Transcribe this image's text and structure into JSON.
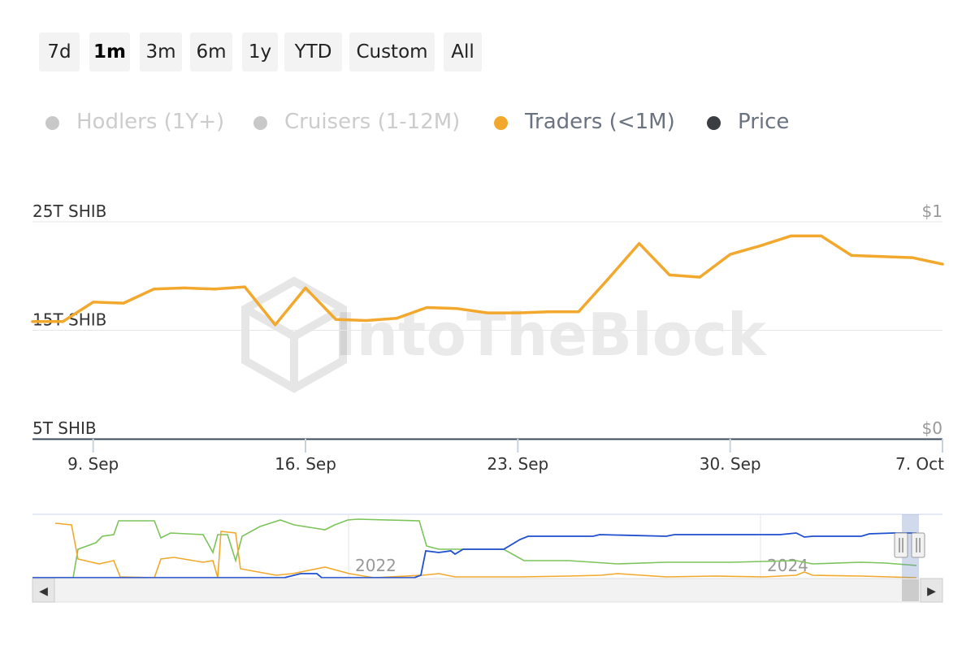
{
  "range_buttons": [
    {
      "label": "7d",
      "active": false
    },
    {
      "label": "1m",
      "active": true
    },
    {
      "label": "3m",
      "active": false
    },
    {
      "label": "6m",
      "active": false
    },
    {
      "label": "1y",
      "active": false
    },
    {
      "label": "YTD",
      "active": false
    },
    {
      "label": "Custom",
      "active": false
    },
    {
      "label": "All",
      "active": false
    }
  ],
  "legend": [
    {
      "label": "Hodlers (1Y+)",
      "enabled": false,
      "color": "#c8c8c8",
      "text_color": "#cccccc"
    },
    {
      "label": "Cruisers (1-12M)",
      "enabled": false,
      "color": "#c8c8c8",
      "text_color": "#cccccc"
    },
    {
      "label": "Traders (<1M)",
      "enabled": true,
      "color": "#f2a82d",
      "text_color": "#6b7280"
    },
    {
      "label": "Price",
      "enabled": true,
      "color": "#3a3d42",
      "text_color": "#6b7280"
    }
  ],
  "watermark": "IntoTheBlock",
  "chart_data": {
    "type": "line",
    "series": [
      {
        "name": "Traders (<1M)",
        "color": "#f2a82d",
        "values": [
          15.8,
          15.8,
          17.6,
          17.5,
          18.8,
          18.9,
          18.8,
          19.0,
          15.5,
          18.9,
          16.0,
          15.9,
          16.1,
          17.1,
          17.0,
          16.6,
          16.6,
          16.7,
          16.7,
          19.8,
          23.0,
          20.1,
          19.9,
          22.0,
          22.8,
          23.7,
          23.7,
          21.9,
          21.8,
          21.7,
          21.1
        ]
      }
    ],
    "x_ticks": [
      "9. Sep",
      "16. Sep",
      "23. Sep",
      "30. Sep",
      "7. Oct"
    ],
    "y_left_ticks": [
      "5T SHIB",
      "15T SHIB",
      "25T SHIB"
    ],
    "y_right_ticks": [
      "$0",
      "$1"
    ],
    "ylim": [
      5,
      25
    ],
    "grid": true
  },
  "navigator": {
    "year_labels": [
      "2022",
      "2024"
    ],
    "colors": {
      "blue": "#1f4fd1",
      "green": "#7cc35a",
      "orange": "#f2a82d"
    }
  },
  "scrollbar": {
    "left_arrow": "◀",
    "right_arrow": "▶"
  }
}
